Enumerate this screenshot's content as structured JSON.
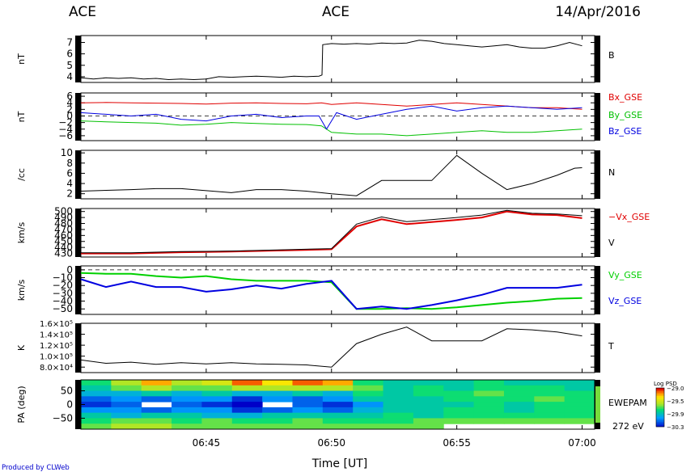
{
  "header": {
    "left": "ACE",
    "center": "ACE",
    "date": "14/Apr/2016"
  },
  "footer": {
    "credit": "Produced by CLWeb",
    "xlabel": "Time [UT]",
    "time_ticks": [
      "06:45",
      "06:50",
      "06:55",
      "07:00"
    ]
  },
  "chart_data": [
    {
      "type": "line",
      "ylabel": "nT",
      "yrange": [
        3.5,
        7.6
      ],
      "yticks": [
        "4",
        "5",
        "6",
        "7"
      ],
      "series": [
        {
          "name": "B",
          "color": "#000000",
          "x": [
            0.0,
            0.5,
            1.0,
            1.5,
            2.0,
            2.5,
            3.0,
            3.5,
            4.0,
            4.5,
            5.0,
            5.5,
            6.0,
            6.5,
            7.0,
            7.5,
            8.0,
            8.5,
            9.0,
            9.5,
            9.62,
            9.65,
            10.0,
            10.5,
            11.0,
            11.5,
            12.0,
            12.5,
            13.0,
            13.5,
            14.0,
            14.5,
            15.0,
            15.5,
            16.0,
            16.5,
            17.0,
            17.5,
            18.0,
            18.5,
            19.0,
            19.5,
            20.0
          ],
          "y": [
            3.9,
            3.8,
            3.9,
            3.85,
            3.9,
            3.8,
            3.85,
            3.75,
            3.8,
            3.75,
            3.8,
            4.0,
            3.95,
            4.0,
            4.05,
            4.0,
            3.95,
            4.05,
            4.0,
            4.05,
            4.15,
            6.8,
            6.9,
            6.85,
            6.9,
            6.85,
            6.95,
            6.9,
            6.95,
            7.2,
            7.1,
            6.9,
            6.8,
            6.7,
            6.6,
            6.7,
            6.8,
            6.6,
            6.5,
            6.5,
            6.7,
            7.0,
            6.7
          ]
        }
      ]
    },
    {
      "type": "line",
      "ylabel": "nT",
      "yrange": [
        -7.5,
        7.0
      ],
      "yticks": [
        "6",
        "4",
        "2",
        "0",
        "−2",
        "−4",
        "−6"
      ],
      "reference_line": 0,
      "series": [
        {
          "name": "Bx_GSE",
          "color": "#e00000",
          "x": [
            0,
            1,
            2,
            3,
            4,
            5,
            6,
            7,
            8,
            9,
            9.6,
            10,
            11,
            12,
            13,
            14,
            15,
            16,
            17,
            18,
            19,
            20
          ],
          "y": [
            4.0,
            4.1,
            4.0,
            3.9,
            3.8,
            3.6,
            3.9,
            4.0,
            3.8,
            3.7,
            4.0,
            3.5,
            4.0,
            3.5,
            3.0,
            3.5,
            4.0,
            3.5,
            3.0,
            2.5,
            2.5,
            2.0
          ]
        },
        {
          "name": "By_GSE",
          "color": "#00c000",
          "x": [
            0,
            1,
            2,
            3,
            4,
            5,
            6,
            7,
            8,
            9,
            9.6,
            10,
            11,
            12,
            13,
            14,
            15,
            16,
            17,
            18,
            19,
            20
          ],
          "y": [
            -1.5,
            -1.8,
            -2.0,
            -2.2,
            -2.8,
            -2.5,
            -2.0,
            -2.3,
            -2.5,
            -2.6,
            -3.0,
            -5.0,
            -5.5,
            -5.5,
            -6.0,
            -5.5,
            -5.0,
            -4.5,
            -5.0,
            -5.0,
            -4.5,
            -4.0
          ]
        },
        {
          "name": "Bz_GSE",
          "color": "#0000e0",
          "x": [
            0,
            1,
            2,
            3,
            4,
            5,
            6,
            7,
            8,
            9,
            9.5,
            9.8,
            10.2,
            11,
            12,
            13,
            14,
            15,
            16,
            17,
            18,
            19,
            20
          ],
          "y": [
            1.0,
            0.5,
            0.0,
            0.5,
            -1.0,
            -1.5,
            0.0,
            0.5,
            -0.5,
            0.0,
            0.0,
            -4.0,
            1.0,
            -1.0,
            0.5,
            2.0,
            3.0,
            1.5,
            2.5,
            3.0,
            2.5,
            2.0,
            2.5
          ]
        }
      ]
    },
    {
      "type": "line",
      "ylabel": "/cc",
      "yrange": [
        1,
        10.5
      ],
      "yticks": [
        "2",
        "4",
        "6",
        "8",
        "10"
      ],
      "series": [
        {
          "name": "N",
          "color": "#000000",
          "x": [
            0,
            2,
            3,
            4,
            5,
            6,
            7,
            8,
            9,
            10,
            11,
            12,
            13,
            14,
            15,
            16,
            17,
            18,
            19,
            19.7,
            20
          ],
          "y": [
            2.5,
            2.8,
            3.0,
            3.0,
            2.6,
            2.2,
            2.8,
            2.8,
            2.5,
            2.0,
            1.6,
            4.6,
            4.6,
            4.6,
            9.5,
            6.0,
            2.8,
            4.0,
            5.6,
            7.0,
            7.1
          ]
        }
      ]
    },
    {
      "type": "line",
      "ylabel": "km/s",
      "yrange": [
        424,
        505
      ],
      "yticks": [
        "430",
        "440",
        "450",
        "460",
        "470",
        "480",
        "490",
        "500"
      ],
      "series": [
        {
          "name": "−Vx_GSE",
          "color": "#e00000",
          "x": [
            0,
            2,
            4,
            6,
            8,
            10,
            11,
            12,
            13,
            15,
            16,
            17,
            18,
            19,
            20
          ],
          "y": [
            430,
            430,
            432,
            433,
            435,
            437,
            475,
            487,
            479,
            486,
            490,
            500,
            495,
            494,
            489
          ]
        },
        {
          "name": "V",
          "color": "#000000",
          "x": [
            0,
            2,
            4,
            6,
            8,
            10,
            11,
            12,
            13,
            15,
            16,
            17,
            18,
            19,
            20
          ],
          "y": [
            431,
            431,
            433,
            434,
            436,
            438,
            479,
            491,
            483,
            490,
            494,
            502,
            497,
            496,
            493
          ]
        }
      ]
    },
    {
      "type": "line",
      "ylabel": "km/s",
      "yrange": [
        -57,
        5
      ],
      "yticks": [
        "0",
        "−10",
        "−20",
        "−30",
        "−40",
        "−50"
      ],
      "reference_line": 0,
      "series": [
        {
          "name": "Vy_GSE",
          "color": "#00d000",
          "x": [
            0,
            1,
            2,
            3,
            4,
            5,
            6,
            7,
            8,
            9,
            10,
            11,
            12,
            13,
            14,
            15,
            16,
            17,
            18,
            19,
            20
          ],
          "y": [
            -4,
            -5,
            -5,
            -8,
            -10,
            -8,
            -12,
            -14,
            -14,
            -14,
            -16,
            -50,
            -50,
            -49,
            -50,
            -48,
            -45,
            -42,
            -40,
            -37,
            -36
          ]
        },
        {
          "name": "Vz_GSE",
          "color": "#0000e0",
          "x": [
            0,
            1,
            2,
            3,
            4,
            5,
            6,
            7,
            8,
            9,
            10,
            11,
            12,
            13,
            14,
            15,
            16,
            17,
            18,
            19,
            20
          ],
          "y": [
            -12,
            -22,
            -15,
            -22,
            -22,
            -28,
            -25,
            -20,
            -24,
            -18,
            -14,
            -50,
            -47,
            -50,
            -45,
            -39,
            -32,
            -23,
            -23,
            -23,
            -19
          ]
        }
      ]
    },
    {
      "type": "line",
      "ylabel": "K",
      "yrange": [
        70000,
        160000
      ],
      "yticks": [
        "8.0×10⁴",
        "1.0×10⁵",
        "1.2×10⁵",
        "1.4×10⁵",
        "1.6×10⁵"
      ],
      "series": [
        {
          "name": "T",
          "color": "#000000",
          "x": [
            0,
            1,
            2,
            3,
            4,
            5,
            6,
            7,
            8,
            9,
            10,
            11,
            12,
            13,
            14,
            15,
            16,
            17,
            18,
            19,
            20
          ],
          "y": [
            93000,
            87000,
            89000,
            85000,
            88000,
            86000,
            88000,
            86000,
            85000,
            84000,
            80000,
            123000,
            140000,
            153000,
            128000,
            128000,
            128000,
            150000,
            148000,
            144000,
            137000
          ]
        }
      ]
    },
    {
      "type": "heatmap",
      "ylabel": "PA (deg)",
      "yrange": [
        -90,
        90
      ],
      "yticks": [
        "50",
        "0",
        "−50"
      ],
      "series_label": "EWEPAM",
      "energy_label": "272 eV",
      "colorbar": {
        "title": "Log PSD",
        "min": -30.3,
        "max": -29.0,
        "ticks": [
          "−29.0",
          "−29.5",
          "−29.9",
          "−30.3"
        ]
      },
      "columns": 17,
      "rows": 9,
      "values": [
        [
          -29.7,
          -29.5,
          -29.2,
          -29.5,
          -29.4,
          -29.1,
          -29.3,
          -29.1,
          -29.2,
          -29.7,
          -29.8,
          -29.8,
          -29.8,
          -29.7,
          -29.8,
          -29.8,
          -29.8
        ],
        [
          -29.8,
          -29.6,
          -29.5,
          -29.6,
          -29.6,
          -29.5,
          -29.5,
          -29.5,
          -29.5,
          -29.6,
          -29.8,
          -29.7,
          -29.8,
          -29.7,
          -29.7,
          -29.7,
          -29.8
        ],
        [
          -29.9,
          -29.9,
          -29.8,
          -29.9,
          -29.8,
          -29.9,
          -29.9,
          -29.8,
          -29.9,
          -29.7,
          -29.8,
          -29.7,
          -29.7,
          -29.6,
          -29.7,
          -29.7,
          -29.7
        ],
        [
          -30.1,
          -30.0,
          -30.1,
          -30.0,
          -30.0,
          -30.2,
          -30.0,
          -30.1,
          -30.0,
          -29.8,
          -29.8,
          -29.8,
          -29.7,
          -29.7,
          -29.7,
          -29.6,
          -29.7
        ],
        [
          -30.2,
          -30.1,
          null,
          -30.1,
          -30.2,
          -30.3,
          null,
          -30.1,
          -30.2,
          -30.0,
          -29.8,
          -29.8,
          -29.8,
          -29.7,
          -29.8,
          -29.7,
          -29.7
        ],
        [
          -30.0,
          -30.0,
          -30.1,
          -30.0,
          -30.0,
          -30.2,
          -30.1,
          -30.0,
          -30.1,
          -29.9,
          -29.8,
          -29.8,
          -29.7,
          -29.7,
          -29.8,
          -29.7,
          -29.7
        ],
        [
          -29.8,
          -29.9,
          -29.8,
          -29.8,
          -29.9,
          -29.9,
          -29.8,
          -29.8,
          -29.8,
          -29.8,
          -29.7,
          -29.8,
          -29.7,
          -29.7,
          -29.7,
          -29.7,
          -29.7
        ],
        [
          -29.7,
          -29.6,
          -29.6,
          -29.7,
          -29.6,
          -29.7,
          -29.7,
          -29.6,
          -29.7,
          -29.7,
          -29.7,
          -29.6,
          -29.6,
          -29.6,
          -29.6,
          -29.6,
          -29.6
        ],
        [
          -29.6,
          -29.5,
          -29.5,
          -29.6,
          -29.6,
          -29.6,
          -29.6,
          -29.6,
          -29.6,
          -29.6,
          -29.6,
          -29.6,
          null,
          null,
          null,
          null,
          null
        ]
      ]
    }
  ]
}
